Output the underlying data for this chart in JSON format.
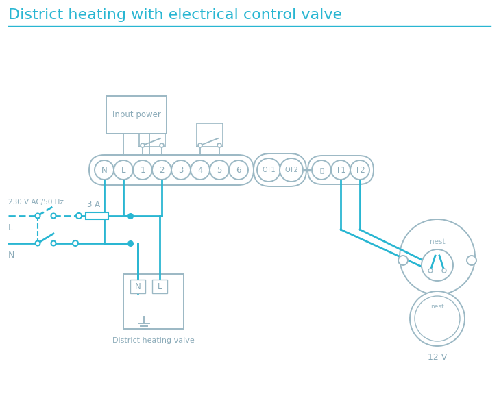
{
  "title": "District heating with electrical control valve",
  "title_color": "#29b6d2",
  "title_fontsize": 16,
  "bg_color": "#ffffff",
  "wc": "#29b6d2",
  "oc": "#9bb8c4",
  "tc": "#8aaab8",
  "terminal_labels": [
    "N",
    "L",
    "1",
    "2",
    "3",
    "4",
    "5",
    "6"
  ],
  "ot_labels": [
    "OT1",
    "OT2"
  ],
  "right_labels": [
    "⏚",
    "T1",
    "T2"
  ],
  "label_230v": "230 V AC/50 Hz",
  "label_L": "L",
  "label_N": "N",
  "label_3A": "3 A",
  "label_input_power": "Input power",
  "label_district": "District heating valve",
  "label_12v": "12 V",
  "label_nest": "nest"
}
